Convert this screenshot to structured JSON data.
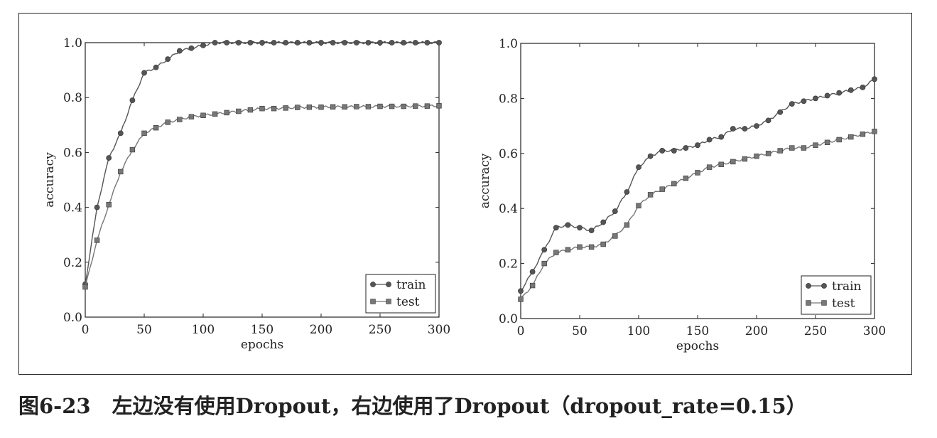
{
  "chart_data": [
    {
      "type": "line",
      "title": "",
      "xlabel": "epochs",
      "ylabel": "accuracy",
      "xlim": [
        0,
        300
      ],
      "ylim": [
        0,
        1
      ],
      "xticks": [
        "0",
        "50",
        "100",
        "150",
        "200",
        "250",
        "300"
      ],
      "yticks": [
        "0.0",
        "0.2",
        "0.4",
        "0.6",
        "0.8",
        "1.0"
      ],
      "grid": false,
      "legend": "bottom-right",
      "series": [
        {
          "name": "train",
          "marker": "circle",
          "color": "#555555",
          "x": [
            0,
            10,
            20,
            30,
            40,
            50,
            60,
            70,
            80,
            90,
            100,
            110,
            120,
            130,
            140,
            150,
            160,
            170,
            180,
            190,
            200,
            210,
            220,
            230,
            240,
            250,
            260,
            270,
            280,
            290,
            300
          ],
          "y": [
            0.12,
            0.4,
            0.58,
            0.67,
            0.79,
            0.89,
            0.91,
            0.94,
            0.97,
            0.98,
            0.99,
            1.0,
            1.0,
            1.0,
            1.0,
            1.0,
            1.0,
            1.0,
            1.0,
            1.0,
            1.0,
            1.0,
            1.0,
            1.0,
            1.0,
            1.0,
            1.0,
            1.0,
            1.0,
            1.0,
            1.0
          ]
        },
        {
          "name": "test",
          "marker": "square",
          "color": "#777777",
          "x": [
            0,
            10,
            20,
            30,
            40,
            50,
            60,
            70,
            80,
            90,
            100,
            110,
            120,
            130,
            140,
            150,
            160,
            170,
            180,
            190,
            200,
            210,
            220,
            230,
            240,
            250,
            260,
            270,
            280,
            290,
            300
          ],
          "y": [
            0.11,
            0.28,
            0.41,
            0.53,
            0.61,
            0.67,
            0.69,
            0.71,
            0.72,
            0.73,
            0.735,
            0.74,
            0.745,
            0.75,
            0.755,
            0.76,
            0.76,
            0.762,
            0.764,
            0.765,
            0.765,
            0.766,
            0.766,
            0.767,
            0.767,
            0.768,
            0.768,
            0.768,
            0.769,
            0.769,
            0.77
          ]
        }
      ]
    },
    {
      "type": "line",
      "title": "",
      "xlabel": "epochs",
      "ylabel": "accuracy",
      "xlim": [
        0,
        300
      ],
      "ylim": [
        0,
        1
      ],
      "xticks": [
        "0",
        "50",
        "100",
        "150",
        "200",
        "250",
        "300"
      ],
      "yticks": [
        "0.0",
        "0.2",
        "0.4",
        "0.6",
        "0.8",
        "1.0"
      ],
      "grid": false,
      "legend": "bottom-right",
      "series": [
        {
          "name": "train",
          "marker": "circle",
          "color": "#555555",
          "x": [
            0,
            10,
            20,
            30,
            40,
            50,
            60,
            70,
            80,
            90,
            100,
            110,
            120,
            130,
            140,
            150,
            160,
            170,
            180,
            190,
            200,
            210,
            220,
            230,
            240,
            250,
            260,
            270,
            280,
            290,
            300
          ],
          "y": [
            0.1,
            0.17,
            0.25,
            0.33,
            0.34,
            0.33,
            0.32,
            0.35,
            0.39,
            0.46,
            0.55,
            0.59,
            0.61,
            0.61,
            0.62,
            0.63,
            0.65,
            0.66,
            0.69,
            0.69,
            0.7,
            0.72,
            0.75,
            0.78,
            0.79,
            0.8,
            0.81,
            0.82,
            0.83,
            0.84,
            0.87
          ]
        },
        {
          "name": "test",
          "marker": "square",
          "color": "#777777",
          "x": [
            0,
            10,
            20,
            30,
            40,
            50,
            60,
            70,
            80,
            90,
            100,
            110,
            120,
            130,
            140,
            150,
            160,
            170,
            180,
            190,
            200,
            210,
            220,
            230,
            240,
            250,
            260,
            270,
            280,
            290,
            300
          ],
          "y": [
            0.07,
            0.12,
            0.2,
            0.24,
            0.25,
            0.26,
            0.26,
            0.27,
            0.3,
            0.34,
            0.41,
            0.45,
            0.47,
            0.49,
            0.51,
            0.53,
            0.55,
            0.56,
            0.57,
            0.58,
            0.59,
            0.6,
            0.61,
            0.62,
            0.62,
            0.63,
            0.64,
            0.65,
            0.66,
            0.67,
            0.68
          ]
        }
      ]
    }
  ],
  "caption": {
    "label": "图6-23",
    "text": "左边没有使用Dropout，右边使用了Dropout（dropout_rate=0.15）"
  }
}
